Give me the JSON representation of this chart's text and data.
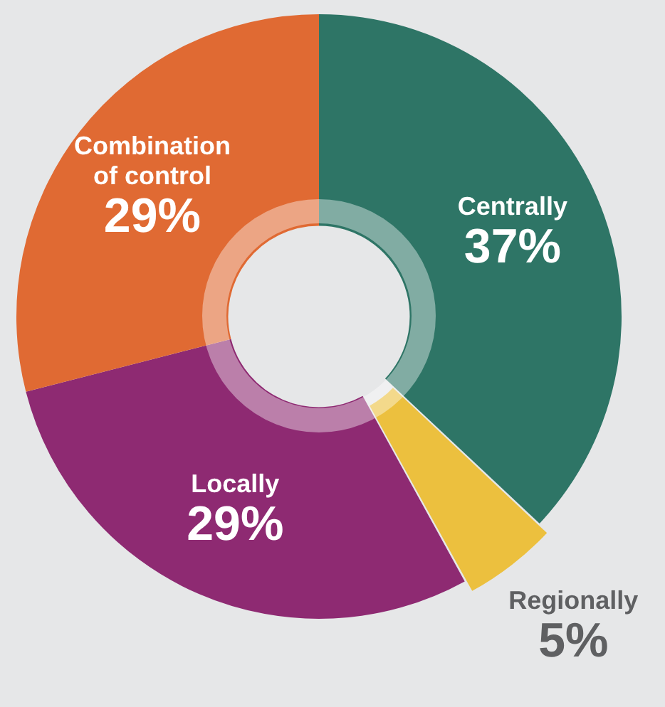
{
  "chart_data": {
    "type": "donut",
    "categories": [
      "Centrally",
      "Regionally",
      "Locally",
      "Combination of control"
    ],
    "values": [
      37,
      5,
      29,
      29
    ],
    "colors": [
      "#2e7566",
      "#ecc03e",
      "#8e2a72",
      "#e06a33"
    ],
    "value_labels": [
      "37%",
      "5%",
      "29%",
      "29%"
    ],
    "legend": false
  }
}
